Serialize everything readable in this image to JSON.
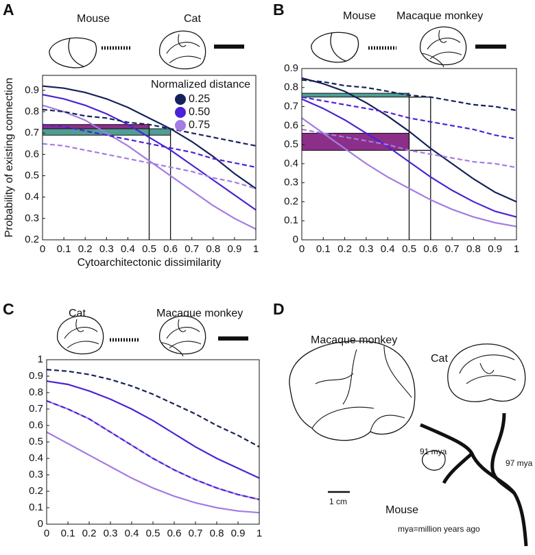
{
  "chart_data": [
    {
      "type": "line",
      "panel": "A",
      "species": [
        "Mouse",
        "Cat"
      ],
      "ylabel": "Probability of existing connection",
      "xlabel": "Cytoarchitectonic dissimilarity",
      "legend_title": "Normalized distance",
      "x": [
        0,
        0.1,
        0.2,
        0.3,
        0.4,
        0.5,
        0.6,
        0.7,
        0.8,
        0.9,
        1
      ],
      "xlim": [
        0,
        1
      ],
      "xticks": [
        0,
        0.1,
        0.2,
        0.3,
        0.4,
        0.5,
        0.6,
        0.7,
        0.8,
        0.9,
        1
      ],
      "ylim": [
        0.2,
        0.97
      ],
      "yticks": [
        0.2,
        0.3,
        0.4,
        0.5,
        0.6,
        0.7,
        0.8,
        0.9
      ],
      "bands": [
        {
          "x": [
            0,
            0.5
          ],
          "y": [
            0.7,
            0.74
          ],
          "color": "#8b2f88"
        },
        {
          "x": [
            0,
            0.6
          ],
          "y": [
            0.69,
            0.72
          ],
          "color": "#4f9e95"
        }
      ],
      "segments": [
        {
          "x": [
            0.5,
            0.5
          ],
          "y": [
            0.2,
            0.74
          ]
        },
        {
          "x": [
            0.6,
            0.6
          ],
          "y": [
            0.2,
            0.72
          ]
        }
      ],
      "series": [
        {
          "name": "0.25",
          "color": "#14215a",
          "dashed": false,
          "values": [
            0.92,
            0.91,
            0.89,
            0.86,
            0.82,
            0.77,
            0.72,
            0.66,
            0.59,
            0.51,
            0.44
          ]
        },
        {
          "name": "0.50",
          "color": "#4b22d6",
          "dashed": false,
          "values": [
            0.88,
            0.86,
            0.83,
            0.79,
            0.74,
            0.68,
            0.62,
            0.55,
            0.48,
            0.41,
            0.34
          ]
        },
        {
          "name": "0.75",
          "color": "#a47be3",
          "dashed": false,
          "values": [
            0.83,
            0.8,
            0.76,
            0.7,
            0.64,
            0.57,
            0.5,
            0.43,
            0.36,
            0.3,
            0.25
          ]
        },
        {
          "color": "#14215a",
          "dashed": true,
          "values": [
            0.81,
            0.8,
            0.78,
            0.77,
            0.75,
            0.74,
            0.72,
            0.7,
            0.68,
            0.66,
            0.64
          ]
        },
        {
          "color": "#4b22d6",
          "dashed": true,
          "values": [
            0.74,
            0.73,
            0.71,
            0.69,
            0.67,
            0.65,
            0.63,
            0.61,
            0.58,
            0.56,
            0.54
          ]
        },
        {
          "color": "#a47be3",
          "dashed": true,
          "values": [
            0.65,
            0.64,
            0.62,
            0.6,
            0.58,
            0.56,
            0.54,
            0.52,
            0.49,
            0.47,
            0.44
          ]
        }
      ]
    },
    {
      "type": "line",
      "panel": "B",
      "species": [
        "Mouse",
        "Macaque monkey"
      ],
      "x": [
        0,
        0.1,
        0.2,
        0.3,
        0.4,
        0.5,
        0.6,
        0.7,
        0.8,
        0.9,
        1
      ],
      "xlim": [
        0,
        1
      ],
      "xticks": [
        0,
        0.1,
        0.2,
        0.3,
        0.4,
        0.5,
        0.6,
        0.7,
        0.8,
        0.9,
        1
      ],
      "ylim": [
        0,
        0.9
      ],
      "yticks": [
        0,
        0.1,
        0.2,
        0.3,
        0.4,
        0.5,
        0.6,
        0.7,
        0.8,
        0.9
      ],
      "bands": [
        {
          "x": [
            0,
            0.5
          ],
          "y": [
            0.75,
            0.77
          ],
          "color": "#4f9e95"
        },
        {
          "x": [
            0,
            0.5
          ],
          "y": [
            0.47,
            0.56
          ],
          "color": "#8b2f88"
        }
      ],
      "segments": [
        {
          "x": [
            0.5,
            0.5
          ],
          "y": [
            0,
            0.77
          ]
        },
        {
          "x": [
            0.6,
            0.6
          ],
          "y": [
            0,
            0.75
          ]
        },
        {
          "x": [
            0.5,
            0.6
          ],
          "y": [
            0.75,
            0.75
          ]
        },
        {
          "x": [
            0.5,
            0.6
          ],
          "y": [
            0.47,
            0.47
          ]
        }
      ],
      "series": [
        {
          "color": "#14215a",
          "dashed": false,
          "values": [
            0.85,
            0.82,
            0.78,
            0.72,
            0.65,
            0.57,
            0.48,
            0.4,
            0.32,
            0.25,
            0.2
          ]
        },
        {
          "color": "#4b22d6",
          "dashed": false,
          "values": [
            0.74,
            0.69,
            0.63,
            0.56,
            0.49,
            0.41,
            0.33,
            0.26,
            0.2,
            0.15,
            0.12
          ]
        },
        {
          "color": "#a47be3",
          "dashed": false,
          "values": [
            0.64,
            0.56,
            0.48,
            0.4,
            0.33,
            0.27,
            0.21,
            0.16,
            0.12,
            0.09,
            0.07
          ]
        },
        {
          "color": "#14215a",
          "dashed": true,
          "values": [
            0.84,
            0.83,
            0.81,
            0.8,
            0.78,
            0.76,
            0.75,
            0.73,
            0.71,
            0.7,
            0.68
          ]
        },
        {
          "color": "#4b22d6",
          "dashed": true,
          "values": [
            0.75,
            0.73,
            0.71,
            0.69,
            0.67,
            0.64,
            0.62,
            0.6,
            0.58,
            0.55,
            0.53
          ]
        },
        {
          "color": "#a47be3",
          "dashed": true,
          "values": [
            0.58,
            0.56,
            0.54,
            0.52,
            0.5,
            0.47,
            0.45,
            0.43,
            0.41,
            0.4,
            0.38
          ]
        }
      ]
    },
    {
      "type": "line",
      "panel": "C",
      "species": [
        "Cat",
        "Macaque monkey"
      ],
      "x": [
        0,
        0.1,
        0.2,
        0.3,
        0.4,
        0.5,
        0.6,
        0.7,
        0.8,
        0.9,
        1
      ],
      "xlim": [
        0,
        1
      ],
      "xticks": [
        0,
        0.1,
        0.2,
        0.3,
        0.4,
        0.5,
        0.6,
        0.7,
        0.8,
        0.9,
        1
      ],
      "ylim": [
        0,
        1
      ],
      "yticks": [
        0,
        0.1,
        0.2,
        0.3,
        0.4,
        0.5,
        0.6,
        0.7,
        0.8,
        0.9,
        1
      ],
      "series": [
        {
          "color": "#4b22d6",
          "dashed": false,
          "values": [
            0.87,
            0.85,
            0.81,
            0.76,
            0.7,
            0.63,
            0.55,
            0.47,
            0.4,
            0.34,
            0.28
          ]
        },
        {
          "color": "#a47be3",
          "dashed": false,
          "values": [
            0.75,
            0.7,
            0.64,
            0.56,
            0.48,
            0.4,
            0.33,
            0.27,
            0.22,
            0.18,
            0.15
          ]
        },
        {
          "color": "#a47be3",
          "dashed": false,
          "values": [
            0.56,
            0.49,
            0.42,
            0.35,
            0.28,
            0.22,
            0.17,
            0.13,
            0.1,
            0.08,
            0.07
          ]
        },
        {
          "color": "#14215a",
          "dashed": true,
          "values": [
            0.94,
            0.93,
            0.91,
            0.88,
            0.84,
            0.79,
            0.73,
            0.67,
            0.6,
            0.54,
            0.47
          ]
        },
        {
          "color": "#4b22d6",
          "dashed": true,
          "values": [
            0.75,
            0.7,
            0.64,
            0.56,
            0.48,
            0.4,
            0.33,
            0.27,
            0.22,
            0.18,
            0.15
          ]
        }
      ]
    }
  ],
  "diagram": {
    "panel": "D",
    "labels": {
      "macaque": "Macaque monkey",
      "cat": "Cat",
      "mouse": "Mouse",
      "split1": "91 mya",
      "split2": "97 mya",
      "scale": "1 cm",
      "note": "mya=million years ago"
    }
  }
}
